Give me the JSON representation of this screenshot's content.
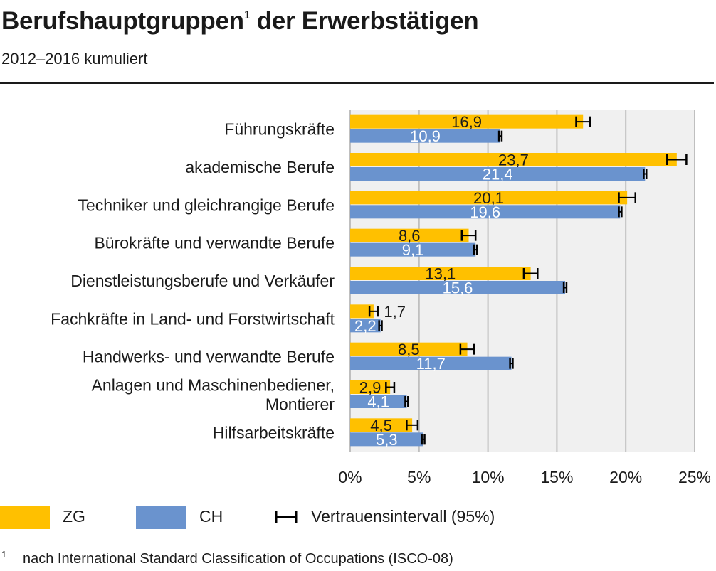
{
  "title": "Berufshauptgruppen",
  "title_footnote_ref": "1",
  "title_rest": " der Erwerbstätigen",
  "subtitle": "2012–2016 kumuliert",
  "colors": {
    "zg": "#FFC000",
    "ch": "#6A93CE",
    "plot_bg": "#F0F0F0",
    "grid": "#BFBFBF",
    "ci": "#000000"
  },
  "legend": {
    "zg": "ZG",
    "ch": "CH",
    "ci": "Vertrauensintervall (95%)"
  },
  "footnote": {
    "mark": "1",
    "text": "nach International Standard Classification of Occupations (ISCO-08)"
  },
  "chart_data": {
    "type": "bar",
    "orientation": "horizontal",
    "categories": [
      "Führungskräfte",
      "akademische Berufe",
      "Techniker und gleichrangige Berufe",
      "Bürokräfte und verwandte Berufe",
      "Dienstleistungsberufe und Verkäufer",
      "Fachkräfte in Land- und Forstwirtschaft",
      "Handwerks- und verwandte Berufe",
      "Anlagen und Maschinenbediener, Montierer",
      "Hilfsarbeitskräfte"
    ],
    "series": [
      {
        "name": "ZG",
        "values": [
          16.9,
          23.7,
          20.1,
          8.6,
          13.1,
          1.7,
          8.5,
          2.9,
          4.5
        ],
        "labels": [
          "16,9",
          "23,7",
          "20,1",
          "8,6",
          "13,1",
          "1,7",
          "8,5",
          "2,9",
          "4,5"
        ],
        "ci_low": [
          16.4,
          23.0,
          19.5,
          8.1,
          12.6,
          1.4,
          8.0,
          2.6,
          4.1
        ],
        "ci_high": [
          17.4,
          24.4,
          20.7,
          9.1,
          13.6,
          2.0,
          9.0,
          3.2,
          4.9
        ]
      },
      {
        "name": "CH",
        "values": [
          10.9,
          21.4,
          19.6,
          9.1,
          15.6,
          2.2,
          11.7,
          4.1,
          5.3
        ],
        "labels": [
          "10,9",
          "21,4",
          "19,6",
          "9,1",
          "15,6",
          "2,2",
          "11,7",
          "4,1",
          "5,3"
        ],
        "ci_low": [
          10.8,
          21.3,
          19.5,
          9.0,
          15.5,
          2.1,
          11.6,
          4.0,
          5.2
        ],
        "ci_high": [
          11.0,
          21.5,
          19.7,
          9.2,
          15.7,
          2.3,
          11.8,
          4.2,
          5.4
        ]
      }
    ],
    "xlim": [
      0,
      25
    ],
    "xticks": [
      "0%",
      "5%",
      "10%",
      "15%",
      "20%",
      "25%"
    ],
    "grid": true,
    "legend_position": "bottom"
  }
}
